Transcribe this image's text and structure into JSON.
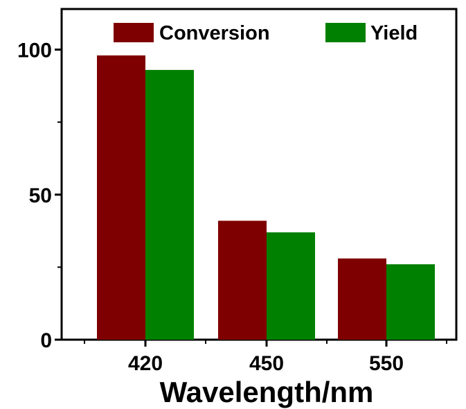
{
  "chart_data": {
    "type": "bar",
    "title": "",
    "xlabel": "Wavelength/nm",
    "ylabel": "",
    "categories": [
      "420",
      "450",
      "550"
    ],
    "series": [
      {
        "name": "Conversion",
        "color": "#7f0000",
        "values": [
          98,
          41,
          28
        ]
      },
      {
        "name": "Yield",
        "color": "#008000",
        "values": [
          93,
          37,
          26
        ]
      }
    ],
    "ylim": [
      0,
      114
    ],
    "yticks": [
      0,
      50,
      100
    ],
    "ytick_labels": [
      "0",
      "50",
      "100"
    ],
    "grid": false,
    "legend_position": "top"
  }
}
